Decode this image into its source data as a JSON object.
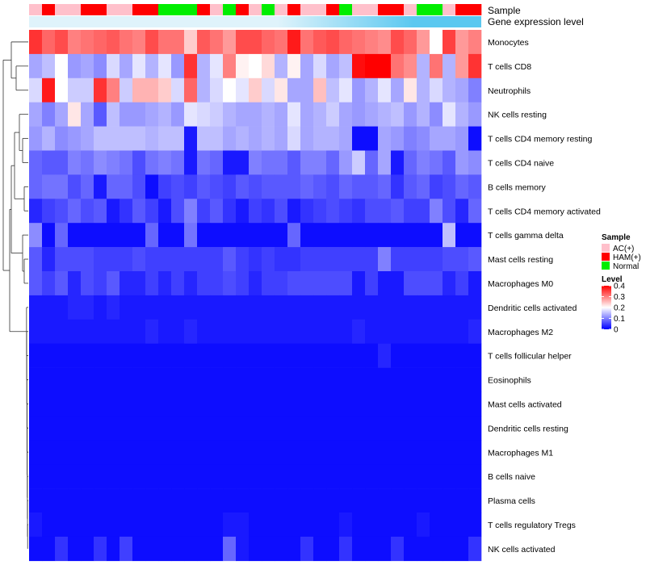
{
  "chart_data": {
    "type": "heatmap",
    "annotation_labels": {
      "sample": "Sample",
      "gene_expression": "Gene expression level"
    },
    "sample_groups": [
      "AC(+)",
      "HAM(+)",
      "AC(+)",
      "AC(+)",
      "HAM(+)",
      "HAM(+)",
      "AC(+)",
      "AC(+)",
      "HAM(+)",
      "HAM(+)",
      "Normal",
      "Normal",
      "Normal",
      "HAM(+)",
      "AC(+)",
      "Normal",
      "HAM(+)",
      "AC(+)",
      "Normal",
      "AC(+)",
      "HAM(+)",
      "AC(+)",
      "AC(+)",
      "HAM(+)",
      "Normal",
      "AC(+)",
      "AC(+)",
      "HAM(+)",
      "HAM(+)",
      "AC(+)",
      "Normal",
      "Normal",
      "AC(+)",
      "HAM(+)",
      "HAM(+)"
    ],
    "rows": [
      "Monocytes",
      "T cells CD8",
      "Neutrophils",
      "NK cells resting",
      "T cells CD4 memory resting",
      "T cells CD4 naive",
      "B cells memory",
      "T cells CD4 memory activated",
      "T cells gamma delta",
      "Mast cells resting",
      "Macrophages M0",
      "Dendritic cells activated",
      "Macrophages M2",
      "T cells follicular helper",
      "Eosinophils",
      "Mast cells activated",
      "Dendritic cells resting",
      "Macrophages M1",
      "B cells naive",
      "Plasma cells",
      "T cells regulatory  Tregs",
      "NK cells activated"
    ],
    "values": [
      [
        0.36,
        0.32,
        0.34,
        0.3,
        0.31,
        0.32,
        0.33,
        0.31,
        0.3,
        0.34,
        0.31,
        0.31,
        0.24,
        0.33,
        0.31,
        0.28,
        0.34,
        0.34,
        0.32,
        0.31,
        0.38,
        0.31,
        0.33,
        0.34,
        0.32,
        0.31,
        0.3,
        0.29,
        0.34,
        0.32,
        0.28,
        0.2,
        0.35,
        0.28,
        0.3
      ],
      [
        0.13,
        0.15,
        0.2,
        0.12,
        0.13,
        0.11,
        0.17,
        0.13,
        0.18,
        0.14,
        0.18,
        0.12,
        0.36,
        0.14,
        0.18,
        0.3,
        0.21,
        0.2,
        0.23,
        0.14,
        0.21,
        0.13,
        0.17,
        0.13,
        0.15,
        0.39,
        0.4,
        0.4,
        0.31,
        0.29,
        0.14,
        0.31,
        0.14,
        0.28,
        0.36
      ],
      [
        0.17,
        0.38,
        0.2,
        0.16,
        0.16,
        0.36,
        0.3,
        0.16,
        0.26,
        0.26,
        0.24,
        0.17,
        0.32,
        0.14,
        0.17,
        0.2,
        0.18,
        0.24,
        0.17,
        0.22,
        0.13,
        0.13,
        0.25,
        0.15,
        0.18,
        0.12,
        0.14,
        0.18,
        0.13,
        0.22,
        0.14,
        0.17,
        0.14,
        0.13,
        0.1
      ],
      [
        0.13,
        0.1,
        0.13,
        0.22,
        0.13,
        0.07,
        0.15,
        0.12,
        0.12,
        0.13,
        0.14,
        0.12,
        0.18,
        0.17,
        0.16,
        0.14,
        0.13,
        0.13,
        0.14,
        0.13,
        0.18,
        0.13,
        0.14,
        0.16,
        0.13,
        0.12,
        0.13,
        0.14,
        0.15,
        0.12,
        0.14,
        0.11,
        0.18,
        0.14,
        0.12
      ],
      [
        0.12,
        0.14,
        0.11,
        0.12,
        0.13,
        0.15,
        0.15,
        0.15,
        0.15,
        0.14,
        0.15,
        0.15,
        0.02,
        0.15,
        0.15,
        0.13,
        0.14,
        0.13,
        0.14,
        0.13,
        0.17,
        0.13,
        0.14,
        0.14,
        0.13,
        0.01,
        0.01,
        0.13,
        0.12,
        0.1,
        0.11,
        0.13,
        0.13,
        0.12,
        0.01
      ],
      [
        0.08,
        0.07,
        0.07,
        0.1,
        0.09,
        0.11,
        0.1,
        0.09,
        0.06,
        0.09,
        0.1,
        0.09,
        0.02,
        0.09,
        0.08,
        0.02,
        0.02,
        0.1,
        0.09,
        0.09,
        0.07,
        0.1,
        0.1,
        0.08,
        0.12,
        0.16,
        0.08,
        0.13,
        0.02,
        0.08,
        0.1,
        0.09,
        0.07,
        0.12,
        0.11
      ],
      [
        0.08,
        0.09,
        0.09,
        0.06,
        0.08,
        0.02,
        0.08,
        0.08,
        0.06,
        0.01,
        0.05,
        0.06,
        0.05,
        0.07,
        0.06,
        0.05,
        0.07,
        0.06,
        0.07,
        0.07,
        0.07,
        0.08,
        0.07,
        0.06,
        0.08,
        0.07,
        0.07,
        0.08,
        0.04,
        0.07,
        0.08,
        0.05,
        0.06,
        0.08,
        0.07
      ],
      [
        0.03,
        0.05,
        0.06,
        0.08,
        0.06,
        0.07,
        0.02,
        0.04,
        0.07,
        0.05,
        0.02,
        0.06,
        0.1,
        0.05,
        0.07,
        0.04,
        0.02,
        0.05,
        0.04,
        0.06,
        0.02,
        0.04,
        0.05,
        0.06,
        0.05,
        0.04,
        0.06,
        0.06,
        0.07,
        0.05,
        0.05,
        0.1,
        0.06,
        0.03,
        0.08
      ],
      [
        0.11,
        0.01,
        0.08,
        0.01,
        0.01,
        0.01,
        0.01,
        0.01,
        0.01,
        0.08,
        0.01,
        0.01,
        0.09,
        0.01,
        0.01,
        0.01,
        0.01,
        0.01,
        0.01,
        0.01,
        0.08,
        0.01,
        0.01,
        0.01,
        0.01,
        0.01,
        0.01,
        0.01,
        0.01,
        0.01,
        0.01,
        0.01,
        0.15,
        0.01,
        0.01
      ],
      [
        0.07,
        0.03,
        0.06,
        0.06,
        0.06,
        0.05,
        0.05,
        0.05,
        0.06,
        0.05,
        0.05,
        0.05,
        0.05,
        0.05,
        0.05,
        0.07,
        0.05,
        0.04,
        0.05,
        0.04,
        0.04,
        0.05,
        0.05,
        0.05,
        0.05,
        0.05,
        0.05,
        0.1,
        0.05,
        0.05,
        0.05,
        0.05,
        0.06,
        0.06,
        0.07
      ],
      [
        0.07,
        0.05,
        0.07,
        0.03,
        0.06,
        0.05,
        0.07,
        0.03,
        0.03,
        0.05,
        0.03,
        0.05,
        0.03,
        0.05,
        0.05,
        0.06,
        0.05,
        0.03,
        0.05,
        0.05,
        0.06,
        0.06,
        0.06,
        0.06,
        0.06,
        0.02,
        0.05,
        0.02,
        0.02,
        0.06,
        0.06,
        0.06,
        0.03,
        0.05,
        0.02
      ],
      [
        0.02,
        0.02,
        0.02,
        0.03,
        0.03,
        0.02,
        0.03,
        0.02,
        0.02,
        0.02,
        0.02,
        0.02,
        0.02,
        0.02,
        0.02,
        0.02,
        0.02,
        0.02,
        0.02,
        0.02,
        0.02,
        0.02,
        0.02,
        0.02,
        0.02,
        0.02,
        0.02,
        0.02,
        0.02,
        0.02,
        0.02,
        0.02,
        0.02,
        0.02,
        0.02
      ],
      [
        0.02,
        0.02,
        0.02,
        0.02,
        0.02,
        0.02,
        0.02,
        0.02,
        0.02,
        0.03,
        0.02,
        0.02,
        0.03,
        0.02,
        0.02,
        0.02,
        0.02,
        0.02,
        0.02,
        0.02,
        0.02,
        0.02,
        0.02,
        0.02,
        0.02,
        0.03,
        0.02,
        0.02,
        0.02,
        0.02,
        0.02,
        0.02,
        0.02,
        0.02,
        0.03
      ],
      [
        0.01,
        0.01,
        0.01,
        0.01,
        0.01,
        0.01,
        0.01,
        0.01,
        0.01,
        0.01,
        0.01,
        0.01,
        0.01,
        0.01,
        0.01,
        0.01,
        0.01,
        0.01,
        0.01,
        0.01,
        0.01,
        0.01,
        0.01,
        0.01,
        0.01,
        0.01,
        0.01,
        0.03,
        0.01,
        0.01,
        0.01,
        0.01,
        0.01,
        0.01,
        0.01
      ],
      [
        0.01,
        0.01,
        0.01,
        0.01,
        0.01,
        0.01,
        0.01,
        0.01,
        0.01,
        0.01,
        0.01,
        0.01,
        0.01,
        0.01,
        0.01,
        0.01,
        0.01,
        0.01,
        0.01,
        0.01,
        0.01,
        0.01,
        0.01,
        0.01,
        0.01,
        0.01,
        0.01,
        0.01,
        0.01,
        0.01,
        0.01,
        0.01,
        0.01,
        0.01,
        0.01
      ],
      [
        0.01,
        0.01,
        0.01,
        0.01,
        0.01,
        0.01,
        0.01,
        0.01,
        0.01,
        0.01,
        0.01,
        0.01,
        0.01,
        0.01,
        0.01,
        0.01,
        0.01,
        0.01,
        0.01,
        0.01,
        0.01,
        0.01,
        0.01,
        0.01,
        0.01,
        0.01,
        0.01,
        0.01,
        0.01,
        0.01,
        0.01,
        0.01,
        0.01,
        0.01,
        0.01
      ],
      [
        0.01,
        0.01,
        0.01,
        0.01,
        0.01,
        0.01,
        0.01,
        0.01,
        0.01,
        0.01,
        0.01,
        0.01,
        0.01,
        0.01,
        0.01,
        0.01,
        0.01,
        0.01,
        0.01,
        0.01,
        0.01,
        0.01,
        0.01,
        0.01,
        0.01,
        0.01,
        0.01,
        0.01,
        0.01,
        0.01,
        0.01,
        0.01,
        0.01,
        0.01,
        0.01
      ],
      [
        0.01,
        0.01,
        0.01,
        0.01,
        0.01,
        0.01,
        0.01,
        0.01,
        0.01,
        0.01,
        0.01,
        0.01,
        0.01,
        0.01,
        0.01,
        0.01,
        0.01,
        0.01,
        0.01,
        0.01,
        0.01,
        0.01,
        0.01,
        0.01,
        0.01,
        0.01,
        0.01,
        0.01,
        0.01,
        0.01,
        0.01,
        0.01,
        0.01,
        0.01,
        0.01
      ],
      [
        0.01,
        0.01,
        0.01,
        0.01,
        0.01,
        0.01,
        0.01,
        0.01,
        0.01,
        0.01,
        0.01,
        0.01,
        0.01,
        0.01,
        0.01,
        0.01,
        0.01,
        0.01,
        0.01,
        0.01,
        0.01,
        0.01,
        0.01,
        0.01,
        0.01,
        0.01,
        0.01,
        0.01,
        0.01,
        0.01,
        0.01,
        0.01,
        0.01,
        0.01,
        0.01
      ],
      [
        0.01,
        0.01,
        0.01,
        0.01,
        0.01,
        0.01,
        0.01,
        0.01,
        0.01,
        0.01,
        0.01,
        0.01,
        0.01,
        0.01,
        0.01,
        0.01,
        0.01,
        0.01,
        0.01,
        0.01,
        0.01,
        0.01,
        0.01,
        0.01,
        0.01,
        0.01,
        0.01,
        0.01,
        0.01,
        0.01,
        0.01,
        0.01,
        0.01,
        0.01,
        0.01
      ],
      [
        0.02,
        0.01,
        0.01,
        0.01,
        0.01,
        0.01,
        0.01,
        0.01,
        0.01,
        0.01,
        0.01,
        0.01,
        0.01,
        0.01,
        0.01,
        0.02,
        0.02,
        0.01,
        0.01,
        0.01,
        0.01,
        0.01,
        0.01,
        0.01,
        0.02,
        0.01,
        0.01,
        0.01,
        0.01,
        0.01,
        0.02,
        0.01,
        0.01,
        0.01,
        0.01
      ],
      [
        0.01,
        0.01,
        0.04,
        0.01,
        0.01,
        0.04,
        0.01,
        0.05,
        0.01,
        0.01,
        0.01,
        0.01,
        0.01,
        0.01,
        0.01,
        0.08,
        0.02,
        0.01,
        0.01,
        0.01,
        0.01,
        0.04,
        0.01,
        0.01,
        0.04,
        0.01,
        0.01,
        0.01,
        0.04,
        0.01,
        0.01,
        0.01,
        0.01,
        0.01,
        0.04
      ]
    ],
    "legend": {
      "sample_title": "Sample",
      "sample_entries": [
        {
          "label": "AC(+)",
          "color": "#ffc0cb"
        },
        {
          "label": "HAM(+)",
          "color": "#ff0000"
        },
        {
          "label": "Normal",
          "color": "#00ee00"
        }
      ],
      "level_title": "Level",
      "level_ticks": [
        0.4,
        0.3,
        0.2,
        0.1,
        0
      ],
      "level_tick_labels": [
        "0.4",
        "0.3",
        "0.2",
        "0.1",
        "0"
      ],
      "placement": "right"
    },
    "color_scale": {
      "low": "#0000ff",
      "mid": "#ffffff",
      "high": "#ff0000",
      "min": 0,
      "mid_value": 0.2,
      "max": 0.4
    },
    "gene_expression_color": "#5bc8f0",
    "gene_expression_band_color": "#dff3fb"
  }
}
